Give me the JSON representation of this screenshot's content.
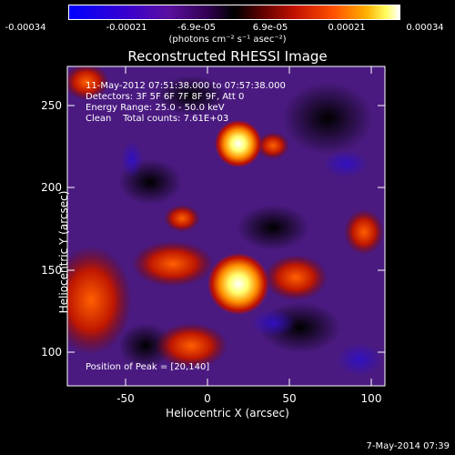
{
  "colorbar": {
    "ticks": [
      "-0.00034",
      "-0.00021",
      "-6.9e-05",
      "6.9e-05",
      "0.00021",
      "0.00034"
    ],
    "units": "(photons cm⁻² s⁻¹ asec⁻²)"
  },
  "plot": {
    "title": "Reconstructed RHESSI Image",
    "xlabel": "Heliocentric X (arcsec)",
    "ylabel": "Heliocentric Y (arcsec)",
    "xticks": [
      "-50",
      "0",
      "50",
      "100"
    ],
    "yticks": [
      "100",
      "150",
      "200",
      "250"
    ],
    "annotations": {
      "time": "11-May-2012 07:51:38.000 to 07:57:38.000",
      "detectors": "Detectors: 3F 5F 6F 7F 8F 9F, Att 0",
      "energy": "Energy Range: 25.0 - 50.0 keV",
      "clean": "Clean    Total counts: 7.61E+03",
      "peak": "Position of Peak = [20,140]"
    }
  },
  "footer_date": "7-May-2014 07:39",
  "chart_data": {
    "type": "heatmap",
    "title": "Reconstructed RHESSI Image",
    "xlabel": "Heliocentric X (arcsec)",
    "ylabel": "Heliocentric Y (arcsec)",
    "xlim": [
      -85,
      110
    ],
    "ylim": [
      83,
      272
    ],
    "colorbar_range": [
      -0.00034,
      0.00034
    ],
    "peaks": [
      {
        "x": 20,
        "y": 140,
        "intensity": 0.00034
      },
      {
        "x": 20,
        "y": 225,
        "intensity": 0.0003
      }
    ],
    "colors": [
      "#0000ff",
      "#4b00a0",
      "#000000",
      "#a00000",
      "#ff3000",
      "#ffa000",
      "#ffff80",
      "#ffffff"
    ]
  }
}
